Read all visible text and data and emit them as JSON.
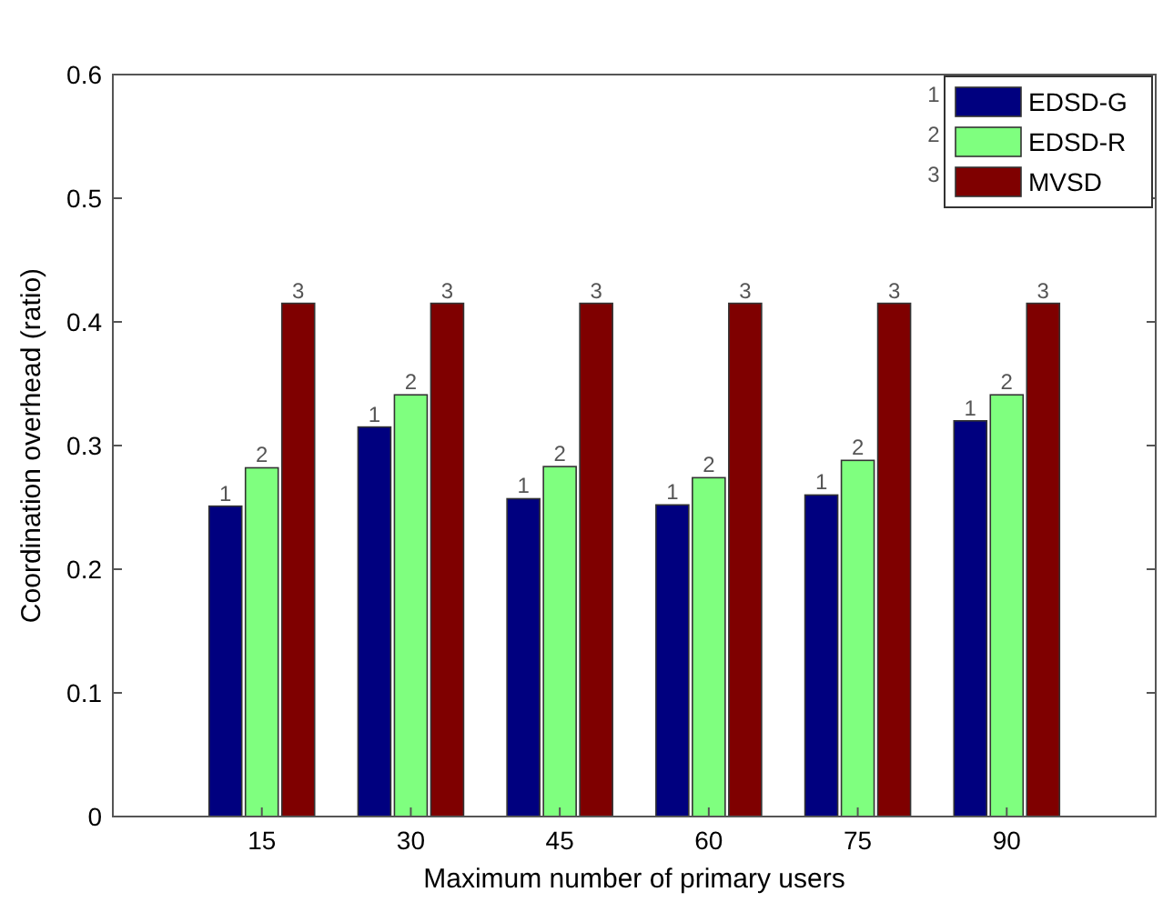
{
  "chart_data": {
    "type": "bar",
    "xlabel": "Maximum number of primary users",
    "ylabel": "Coordination overhead (ratio)",
    "categories": [
      "15",
      "30",
      "45",
      "60",
      "75",
      "90"
    ],
    "series": [
      {
        "name": "EDSD-G",
        "color": "#00007f",
        "values": [
          0.251,
          0.315,
          0.257,
          0.252,
          0.26,
          0.32
        ]
      },
      {
        "name": "EDSD-R",
        "color": "#7fff7f",
        "values": [
          0.282,
          0.341,
          0.283,
          0.274,
          0.288,
          0.341
        ]
      },
      {
        "name": "MVSD",
        "color": "#7f0000",
        "values": [
          0.415,
          0.415,
          0.415,
          0.415,
          0.415,
          0.415
        ]
      }
    ],
    "ylim": [
      0,
      0.6
    ],
    "yticks": [
      0,
      0.1,
      0.2,
      0.3,
      0.4,
      0.5,
      0.6
    ],
    "grid": false,
    "legend": "top right",
    "annotations": [
      "1",
      "2",
      "3",
      "1",
      "2",
      "3",
      "1",
      "2",
      "3",
      "1",
      "2",
      "3",
      "1",
      "2",
      "3",
      "1",
      "2",
      "3",
      "1",
      "2",
      "3"
    ]
  }
}
